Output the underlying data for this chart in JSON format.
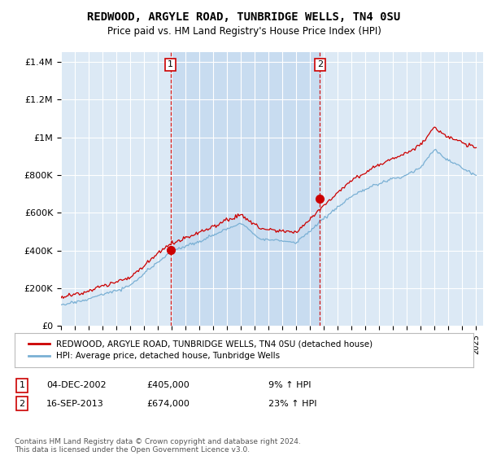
{
  "title": "REDWOOD, ARGYLE ROAD, TUNBRIDGE WELLS, TN4 0SU",
  "subtitle": "Price paid vs. HM Land Registry's House Price Index (HPI)",
  "bg_color": "#dce9f5",
  "plot_bg_color": "#dce9f5",
  "highlight_color": "#c8dcf0",
  "y_ticks": [
    0,
    200000,
    400000,
    600000,
    800000,
    1000000,
    1200000,
    1400000
  ],
  "y_tick_labels": [
    "£0",
    "£200K",
    "£400K",
    "£600K",
    "£800K",
    "£1M",
    "£1.2M",
    "£1.4M"
  ],
  "x_start_year": 1995,
  "x_end_year": 2025,
  "purchase1_date": 2002.92,
  "purchase1_value": 405000,
  "purchase1_label": "1",
  "purchase2_date": 2013.71,
  "purchase2_value": 674000,
  "purchase2_label": "2",
  "legend_red_label": "REDWOOD, ARGYLE ROAD, TUNBRIDGE WELLS, TN4 0SU (detached house)",
  "legend_blue_label": "HPI: Average price, detached house, Tunbridge Wells",
  "annotation1_date": "04-DEC-2002",
  "annotation1_price": "£405,000",
  "annotation1_pct": "9% ↑ HPI",
  "annotation2_date": "16-SEP-2013",
  "annotation2_price": "£674,000",
  "annotation2_pct": "23% ↑ HPI",
  "footnote": "Contains HM Land Registry data © Crown copyright and database right 2024.\nThis data is licensed under the Open Government Licence v3.0.",
  "red_color": "#cc0000",
  "blue_color": "#7ab0d4",
  "grid_color": "#ffffff",
  "ylim_max": 1450000
}
